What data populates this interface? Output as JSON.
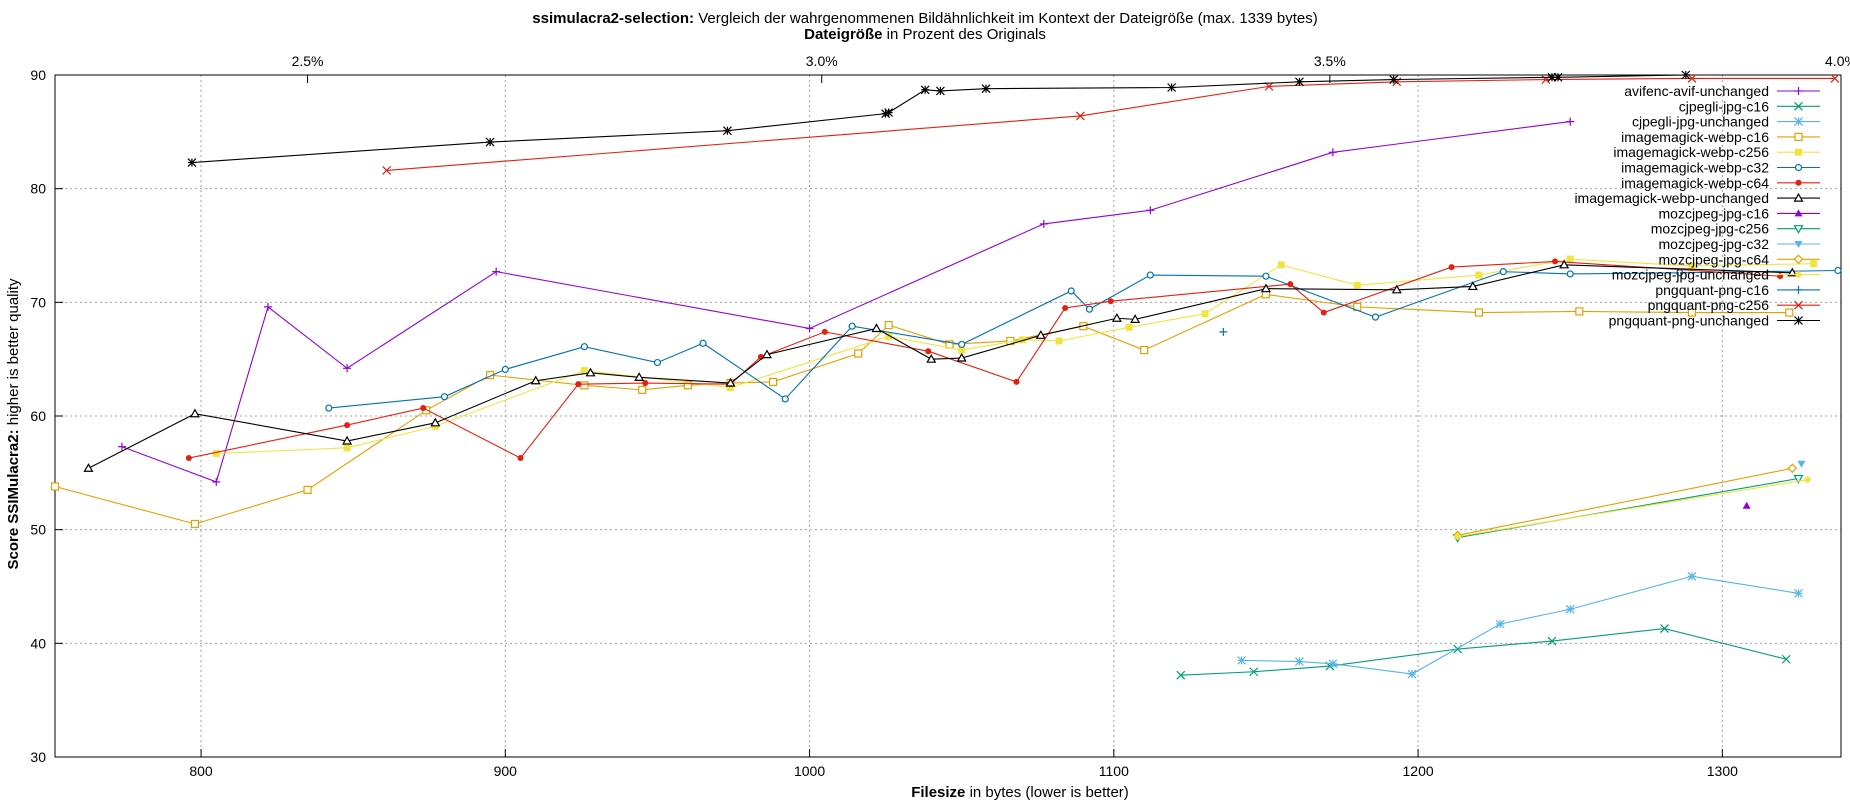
{
  "header": {
    "title_bold": "ssimulacra2-selection:",
    "title_rest": " Vergleich der wahrgenommenen Bildähnlichkeit im Kontext der Dateigröße (max. 1339 bytes)",
    "top_axis_bold": "Dateigröße",
    "top_axis_rest": " in Prozent des Originals"
  },
  "axes": {
    "x_label_bold": "Filesize",
    "x_label_rest": " in bytes (lower is better)",
    "y_label_bold": "Score SSIMulacra2:",
    "y_label_rest": " higher is better quality"
  },
  "chart_data": {
    "type": "line",
    "title": "ssimulacra2-selection: Vergleich der wahrgenommenen Bildähnlichkeit im Kontext der Dateigröße (max. 1339 bytes)",
    "xlabel": "Filesize in bytes (lower is better)",
    "ylabel": "Score SSIMulacra2: higher is better quality",
    "x2label": "Dateigröße in Prozent des Originals",
    "xlim": [
      752,
      1339
    ],
    "ylim": [
      30,
      90
    ],
    "x_ticks": [
      800,
      900,
      1000,
      1100,
      1200,
      1300
    ],
    "y_ticks": [
      30,
      40,
      50,
      60,
      70,
      80,
      90
    ],
    "x2_ticks": [
      "2.5%",
      "3.0%",
      "3.5%",
      "4.0%"
    ],
    "x2_tick_bytes": [
      835,
      1004,
      1171,
      1339
    ],
    "grid": true,
    "legend_position": "top-right",
    "series": [
      {
        "name": "avifenc-avif-unchanged",
        "color": "#9400d3",
        "marker": "plus",
        "x": [
          774,
          805,
          822,
          848,
          897,
          1000,
          1077,
          1112,
          1172,
          1250
        ],
        "y": [
          57.3,
          54.2,
          69.6,
          64.2,
          72.7,
          67.7,
          76.9,
          78.1,
          83.2,
          85.9
        ]
      },
      {
        "name": "cjpegli-jpg-c16",
        "color": "#009e73",
        "marker": "x",
        "x": [
          1122,
          1146,
          1171,
          1213,
          1244,
          1281,
          1321
        ],
        "y": [
          37.2,
          37.5,
          38.0,
          39.5,
          40.2,
          41.3,
          38.6
        ]
      },
      {
        "name": "cjpegli-jpg-unchanged",
        "color": "#56b4e9",
        "marker": "star",
        "x": [
          1142,
          1161,
          1172,
          1198,
          1227,
          1250,
          1290,
          1325
        ],
        "y": [
          38.5,
          38.4,
          38.2,
          37.3,
          41.7,
          43.0,
          45.9,
          44.4
        ]
      },
      {
        "name": "imagemagick-webp-c16",
        "color": "#e69f00",
        "marker": "square",
        "x": [
          752,
          798,
          835,
          874,
          895,
          926,
          945,
          960,
          974,
          988,
          1016,
          1026,
          1046,
          1066,
          1090,
          1110,
          1150,
          1180,
          1220,
          1253,
          1290,
          1322
        ],
        "y": [
          53.8,
          50.5,
          53.5,
          60.5,
          63.6,
          62.7,
          62.3,
          62.7,
          62.9,
          63.0,
          65.5,
          68.0,
          66.3,
          66.6,
          67.9,
          65.8,
          70.7,
          69.6,
          69.1,
          69.2,
          69.1,
          69.1
        ]
      },
      {
        "name": "imagemagick-webp-c256",
        "color": "#f0e442",
        "marker": "fsquare",
        "x": [
          805,
          848,
          877,
          926,
          974,
          1026,
          1050,
          1070,
          1082,
          1105,
          1130,
          1155,
          1180,
          1220,
          1250,
          1290,
          1330
        ],
        "y": [
          56.7,
          57.2,
          59.1,
          64.0,
          62.5,
          67.0,
          65.8,
          66.7,
          66.6,
          67.8,
          69.0,
          73.3,
          71.5,
          72.4,
          73.8,
          73.2,
          73.4
        ]
      },
      {
        "name": "imagemagick-webp-c32",
        "color": "#0072b2",
        "marker": "circle",
        "x": [
          842,
          880,
          900,
          926,
          950,
          965,
          992,
          1014,
          1050,
          1086,
          1092,
          1112,
          1150,
          1186,
          1228,
          1250,
          1286,
          1338
        ],
        "y": [
          60.7,
          61.7,
          64.1,
          66.1,
          64.7,
          66.4,
          61.5,
          67.9,
          66.3,
          71.0,
          69.4,
          72.4,
          72.3,
          68.7,
          72.7,
          72.5,
          72.6,
          72.8
        ]
      },
      {
        "name": "imagemagick-webp-c64",
        "color": "#e51e10",
        "marker": "fcircle",
        "x": [
          796,
          848,
          873,
          905,
          924,
          946,
          974,
          984,
          1005,
          1039,
          1068,
          1084,
          1099,
          1158,
          1169,
          1211,
          1245,
          1319
        ],
        "y": [
          56.3,
          59.2,
          60.7,
          56.3,
          62.8,
          62.9,
          62.8,
          65.2,
          67.4,
          65.7,
          63.0,
          69.5,
          70.1,
          71.6,
          69.1,
          73.1,
          73.6,
          72.3
        ]
      },
      {
        "name": "imagemagick-webp-unchanged",
        "color": "#000000",
        "marker": "triangle",
        "x": [
          763,
          798,
          848,
          877,
          910,
          928,
          944,
          974,
          986,
          1022,
          1040,
          1050,
          1076,
          1101,
          1107,
          1150,
          1193,
          1218,
          1248,
          1323
        ],
        "y": [
          55.4,
          60.2,
          57.8,
          59.4,
          63.1,
          63.8,
          63.4,
          62.9,
          65.4,
          67.7,
          65.0,
          65.1,
          67.1,
          68.6,
          68.5,
          71.2,
          71.1,
          71.4,
          73.3,
          72.6
        ]
      },
      {
        "name": "mozcjpeg-jpg-c16",
        "color": "#9400d3",
        "marker": "ftriangle",
        "x": [
          1308
        ],
        "y": [
          52.1
        ]
      },
      {
        "name": "mozcjpeg-jpg-c256",
        "color": "#009e73",
        "marker": "itriangle",
        "x": [
          1213,
          1325
        ],
        "y": [
          49.3,
          54.5
        ]
      },
      {
        "name": "mozcjpeg-jpg-c32",
        "color": "#56b4e9",
        "marker": "fitriangle",
        "x": [
          1326
        ],
        "y": [
          55.8
        ]
      },
      {
        "name": "mozcjpeg-jpg-c64",
        "color": "#e69f00",
        "marker": "diamond",
        "x": [
          1213,
          1323
        ],
        "y": [
          49.5,
          55.4
        ]
      },
      {
        "name": "mozcjpeg-jpg-unchanged",
        "color": "#f0e442",
        "marker": "fdiamond",
        "x": [
          1213,
          1328
        ],
        "y": [
          49.4,
          54.4
        ]
      },
      {
        "name": "pngquant-png-c16",
        "color": "#0072b2",
        "marker": "plus",
        "x": [
          1136
        ],
        "y": [
          67.4
        ]
      },
      {
        "name": "pngquant-png-c256",
        "color": "#e51e10",
        "marker": "x",
        "x": [
          861,
          1089,
          1151,
          1193,
          1242,
          1290,
          1337
        ],
        "y": [
          81.6,
          86.4,
          89.0,
          89.4,
          89.6,
          89.7,
          89.7
        ]
      },
      {
        "name": "pngquant-png-unchanged",
        "color": "#000000",
        "marker": "star",
        "x": [
          797,
          895,
          973,
          1025,
          1026,
          1038,
          1043,
          1058,
          1119,
          1161,
          1192,
          1244,
          1246,
          1288
        ],
        "y": [
          82.3,
          84.1,
          85.1,
          86.6,
          86.7,
          88.7,
          88.6,
          88.8,
          88.9,
          89.4,
          89.6,
          89.8,
          89.8,
          90.0
        ]
      }
    ]
  }
}
